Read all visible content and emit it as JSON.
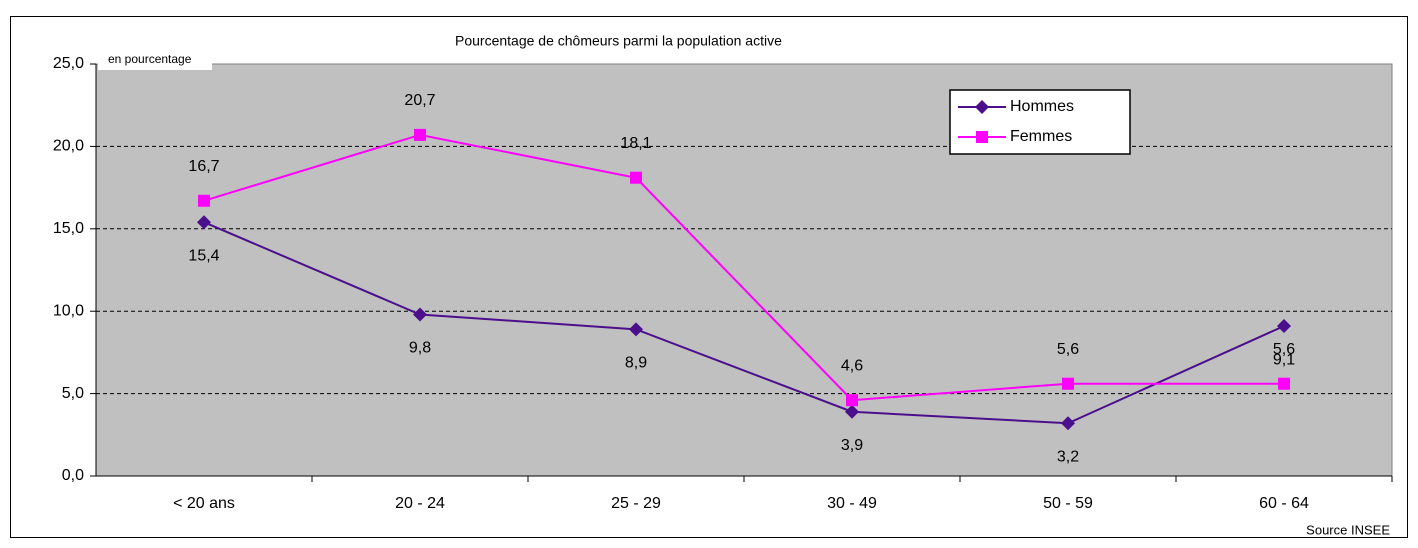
{
  "chart_data": {
    "type": "line",
    "title": "Pourcentage de chômeurs parmi la population active",
    "annotations": [
      "en pourcentage",
      "Source INSEE"
    ],
    "categories": [
      "< 20 ans",
      "20 - 24",
      "25 - 29",
      "30 - 49",
      "50 - 59",
      "60 - 64"
    ],
    "series": [
      {
        "name": "Hommes",
        "color": "#4b0f8c",
        "marker": "diamond",
        "label_position": "below",
        "values": [
          15.4,
          9.8,
          8.9,
          3.9,
          3.2,
          9.1
        ],
        "value_labels": [
          "15,4",
          "9,8",
          "8,9",
          "3,9",
          "3,2",
          "9,1"
        ]
      },
      {
        "name": "Femmes",
        "color": "#ff00ff",
        "marker": "square",
        "label_position": "above",
        "values": [
          16.7,
          20.7,
          18.1,
          4.6,
          5.6,
          5.6
        ],
        "value_labels": [
          "16,7",
          "20,7",
          "18,1",
          "4,6",
          "5,6",
          "5,6"
        ]
      }
    ],
    "ylim": [
      0,
      25
    ],
    "yticks": [
      {
        "value": 0,
        "label": "0,0"
      },
      {
        "value": 5,
        "label": "5,0"
      },
      {
        "value": 10,
        "label": "10,0"
      },
      {
        "value": 15,
        "label": "15,0"
      },
      {
        "value": 20,
        "label": "20,0"
      },
      {
        "value": 25,
        "label": "25,0"
      }
    ],
    "grid": true,
    "legend": "top-right"
  }
}
